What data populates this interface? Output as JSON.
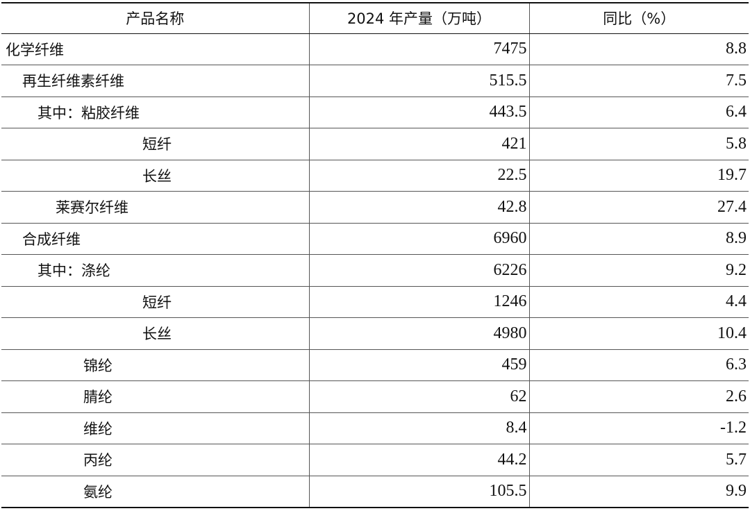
{
  "table": {
    "headers": [
      "产品名称",
      "2024 年产量（万吨）",
      "同比（%）"
    ],
    "rows": [
      {
        "name": "化学纤维",
        "output": "7475",
        "yoy": "8.8"
      },
      {
        "name": "再生纤维素纤维",
        "output": "515.5",
        "yoy": "7.5"
      },
      {
        "name": "其中：粘胶纤维",
        "output": "443.5",
        "yoy": "6.4"
      },
      {
        "name": "短纤",
        "output": "421",
        "yoy": "5.8"
      },
      {
        "name": "长丝",
        "output": "22.5",
        "yoy": "19.7"
      },
      {
        "name": "莱赛尔纤维",
        "output": "42.8",
        "yoy": "27.4"
      },
      {
        "name": "合成纤维",
        "output": "6960",
        "yoy": "8.9"
      },
      {
        "name": "其中：涤纶",
        "output": "6226",
        "yoy": "9.2"
      },
      {
        "name": "短纤",
        "output": "1246",
        "yoy": "4.4"
      },
      {
        "name": "长丝",
        "output": "4980",
        "yoy": "10.4"
      },
      {
        "name": "锦纶",
        "output": "459",
        "yoy": "6.3"
      },
      {
        "name": "腈纶",
        "output": "62",
        "yoy": "2.6"
      },
      {
        "name": "维纶",
        "output": "8.4",
        "yoy": "-1.2"
      },
      {
        "name": "丙纶",
        "output": "44.2",
        "yoy": "5.7"
      },
      {
        "name": "氨纶",
        "output": "105.5",
        "yoy": "9.9"
      }
    ]
  }
}
